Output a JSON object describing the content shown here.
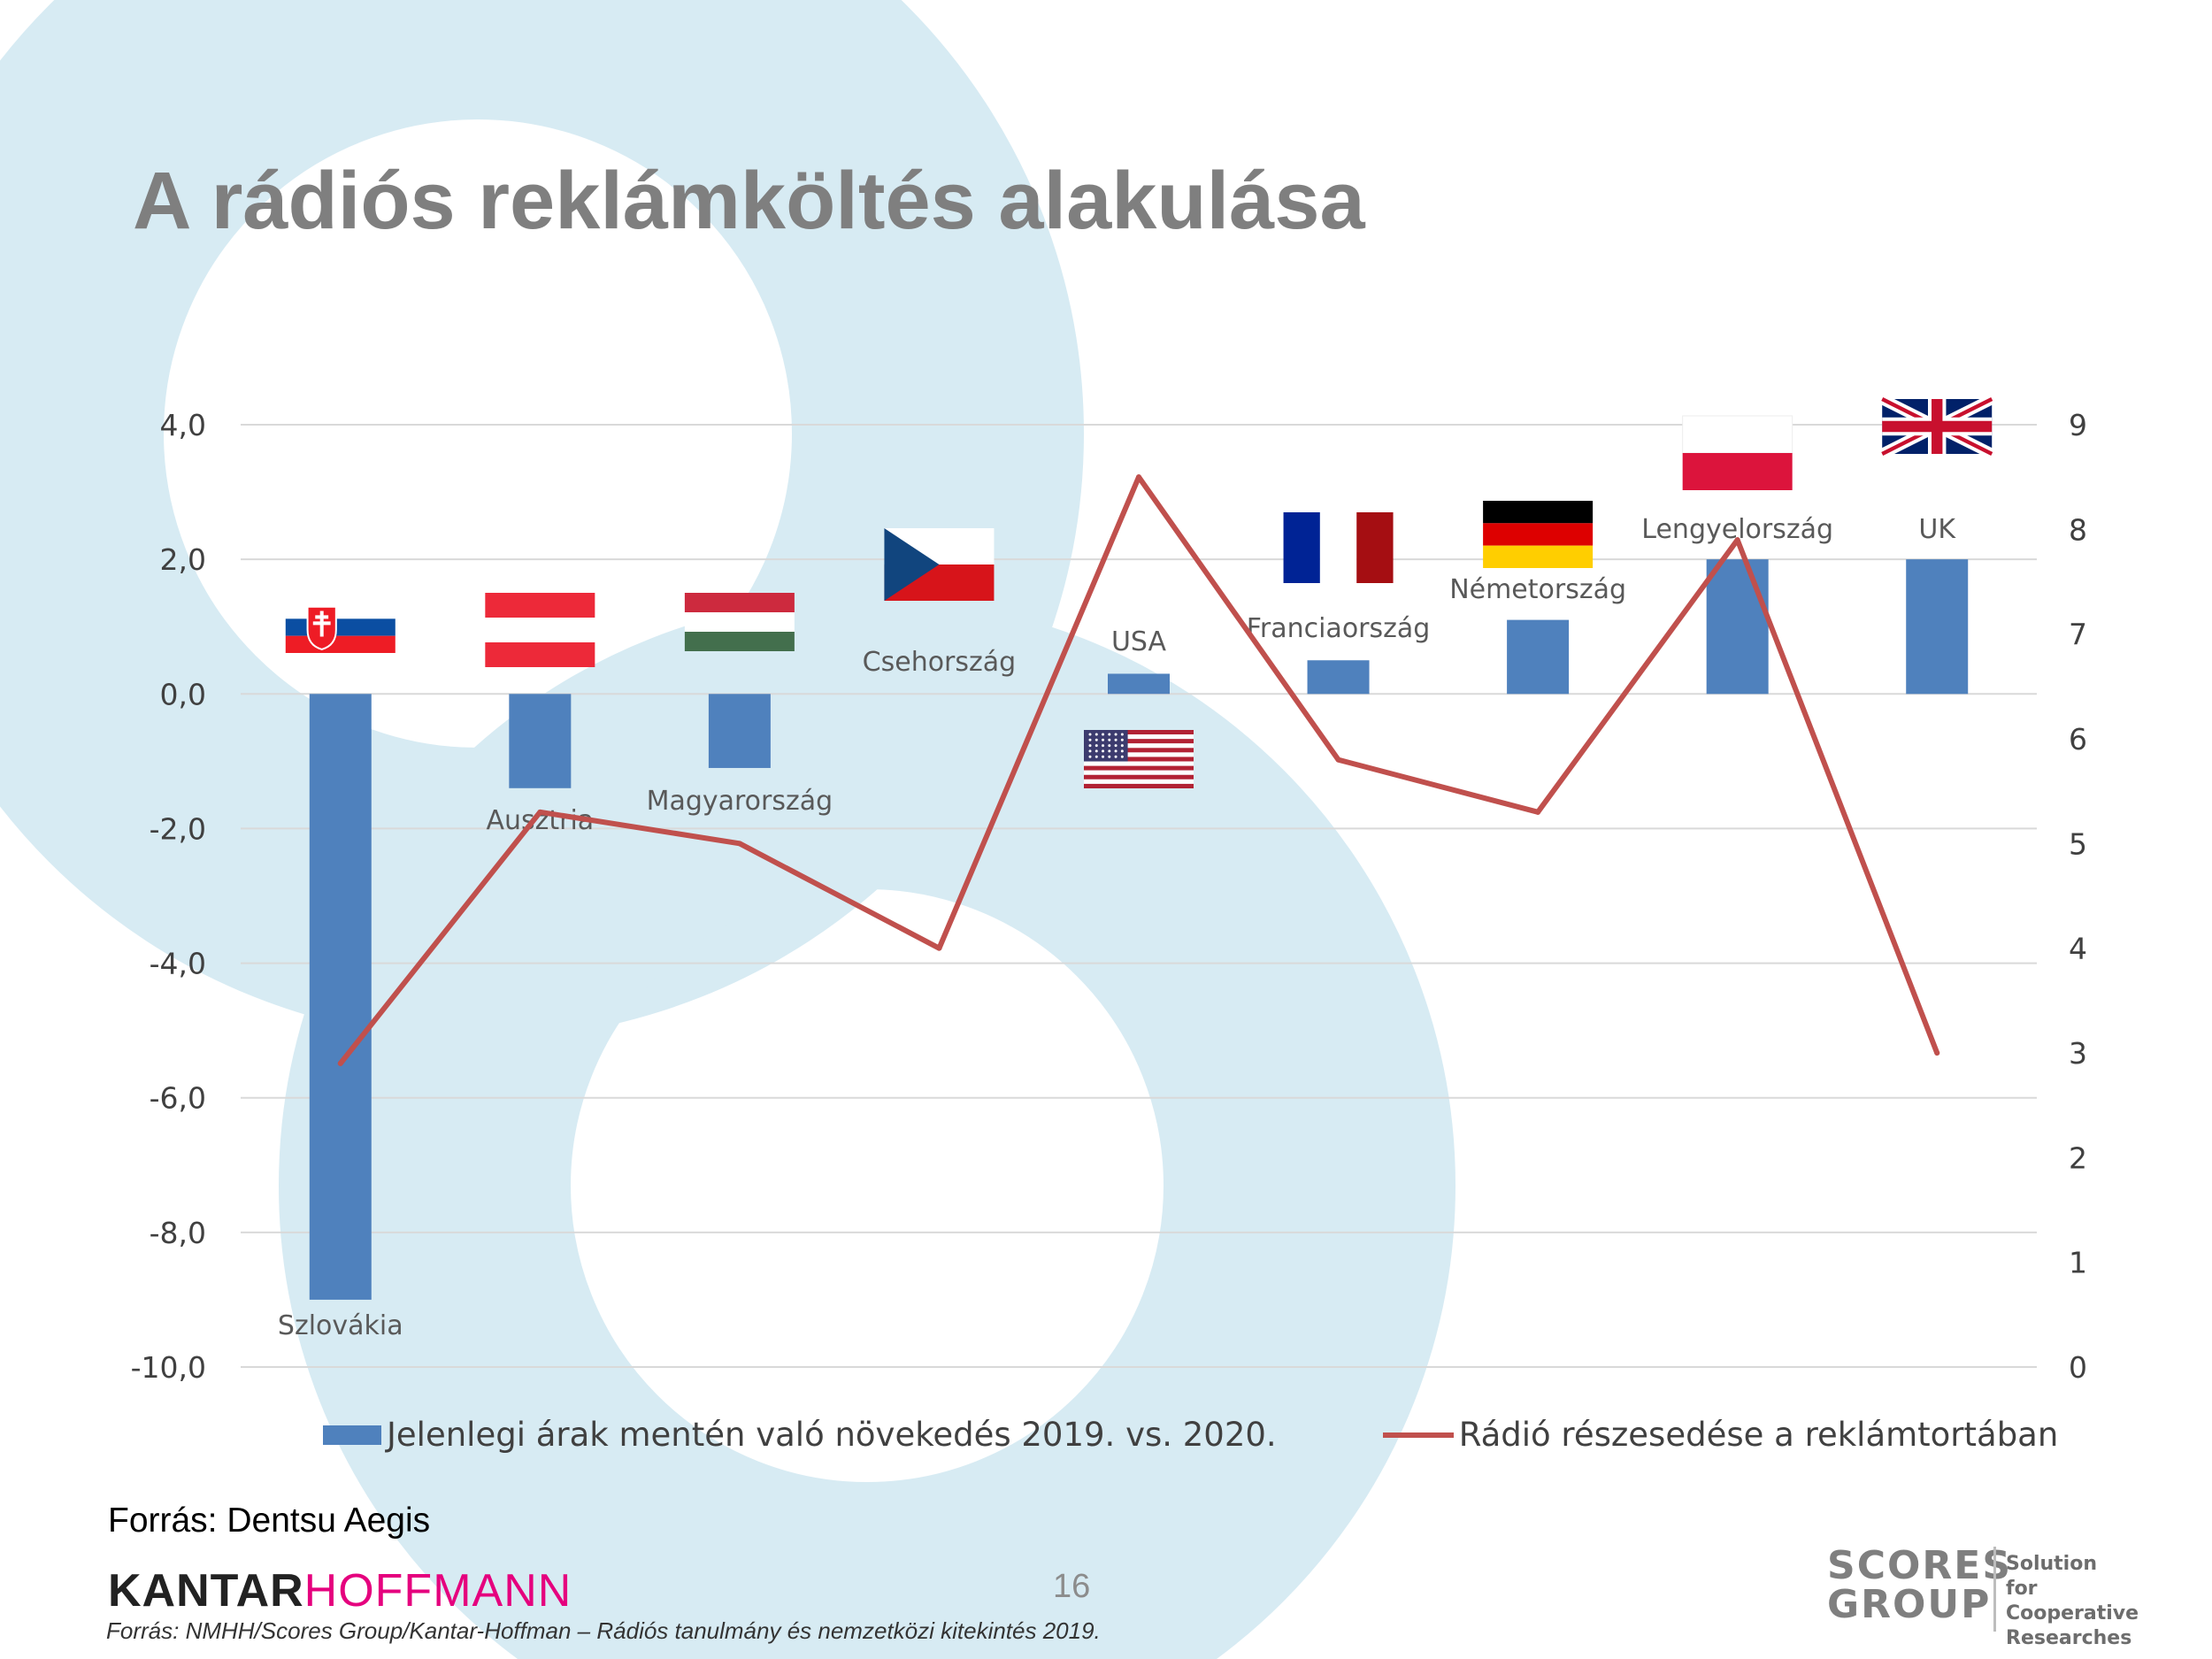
{
  "slide": {
    "title": "A rádiós reklámköltés alakulása",
    "source": "Forrás: Dentsu Aegis",
    "page_number": "16",
    "footnote": "Forrás: NMHH/Scores Group/Kantar-Hoffman – Rádiós tanulmány és nemzetközi kitekintés 2019.",
    "logo_kantar_part1": "KANTAR",
    "logo_kantar_part2": "HOFFMANN",
    "logo_scores_line1": "SCORES",
    "logo_scores_line2": "GROUP",
    "logo_scores_tagline": [
      "Solution",
      "for Cooperative",
      "Researches"
    ]
  },
  "colors": {
    "bar": "#4f81bd",
    "line": "#c0504d",
    "title": "#7f7f7f",
    "background_circles": "#d7ebf3",
    "gridline": "#d9d9d9"
  },
  "chart_data": {
    "type": "bar+line",
    "categories": [
      "Szlovákia",
      "Ausztria",
      "Magyarország",
      "Csehország",
      "USA",
      "Franciaország",
      "Németország",
      "Lengyelország",
      "UK"
    ],
    "series": [
      {
        "name": "Jelenlegi árak mentén való növekedés 2019. vs. 2020.",
        "type": "bar",
        "axis": "left",
        "values": [
          -9.0,
          -1.4,
          -1.1,
          0.0,
          0.3,
          0.5,
          1.1,
          2.0,
          2.0
        ]
      },
      {
        "name": "Rádió részesedése a reklámtortában",
        "type": "line",
        "axis": "right",
        "values": [
          2.9,
          5.3,
          5.0,
          4.0,
          8.5,
          5.8,
          5.3,
          7.9,
          3.0
        ]
      }
    ],
    "y_left": {
      "range": [
        -10,
        4
      ],
      "ticks": [
        "4,0",
        "2,0",
        "0,0",
        "-2,0",
        "-4,0",
        "-6,0",
        "-8,0",
        "-10,0"
      ]
    },
    "y_right": {
      "range": [
        0,
        9
      ],
      "ticks": [
        "9",
        "8",
        "7",
        "6",
        "5",
        "4",
        "3",
        "2",
        "1",
        "0"
      ]
    },
    "flags": [
      "slovakia",
      "austria",
      "hungary",
      "czechia",
      "usa",
      "france",
      "germany",
      "poland",
      "uk"
    ],
    "grid": true,
    "legend": "bottom"
  }
}
